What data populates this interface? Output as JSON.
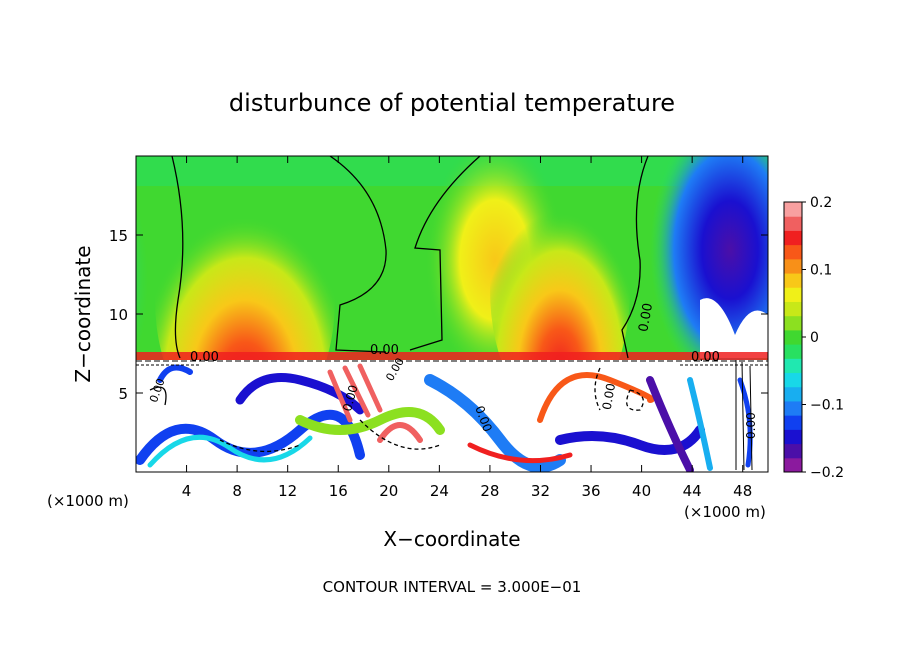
{
  "chart_data": {
    "type": "heatmap",
    "title": "disturbunce of potential temperature",
    "xlabel": "X−coordinate",
    "ylabel": "Z−coordinate",
    "x_unit_left": "(×1000 m)",
    "x_unit_right": "(×1000 m)",
    "footer": "CONTOUR INTERVAL = 3.000E−01",
    "xlim": [
      0,
      50
    ],
    "ylim": [
      0,
      20
    ],
    "x_ticks": [
      "4",
      "8",
      "12",
      "16",
      "20",
      "24",
      "28",
      "32",
      "36",
      "40",
      "44",
      "48"
    ],
    "x_tick_values": [
      4,
      8,
      12,
      16,
      20,
      24,
      28,
      32,
      36,
      40,
      44,
      48
    ],
    "y_ticks": [
      "5",
      "10",
      "15"
    ],
    "y_tick_values": [
      5,
      10,
      15
    ],
    "colorbar": {
      "labels": [
        "0.2",
        "0.1",
        "0",
        "−0.1",
        "−0.2"
      ],
      "label_values": [
        0.2,
        0.1,
        0,
        -0.1,
        -0.2
      ],
      "range": [
        -0.2,
        0.2
      ],
      "colors": [
        "#8b1a9e",
        "#4b0fa8",
        "#1a10d0",
        "#1040f0",
        "#1e7cf5",
        "#18aef0",
        "#18d8e8",
        "#20e8b0",
        "#28e060",
        "#40d830",
        "#8ce020",
        "#c8e818",
        "#f0f018",
        "#f8c818",
        "#f89018",
        "#f85818",
        "#f02020",
        "#f06060",
        "#f8a0a0"
      ]
    },
    "contour_labels": [
      "0.00",
      "0.00",
      "0.00",
      "0.00",
      "0.00",
      "0.00",
      "0.00",
      "0.00",
      "0.00",
      "0.00"
    ]
  }
}
